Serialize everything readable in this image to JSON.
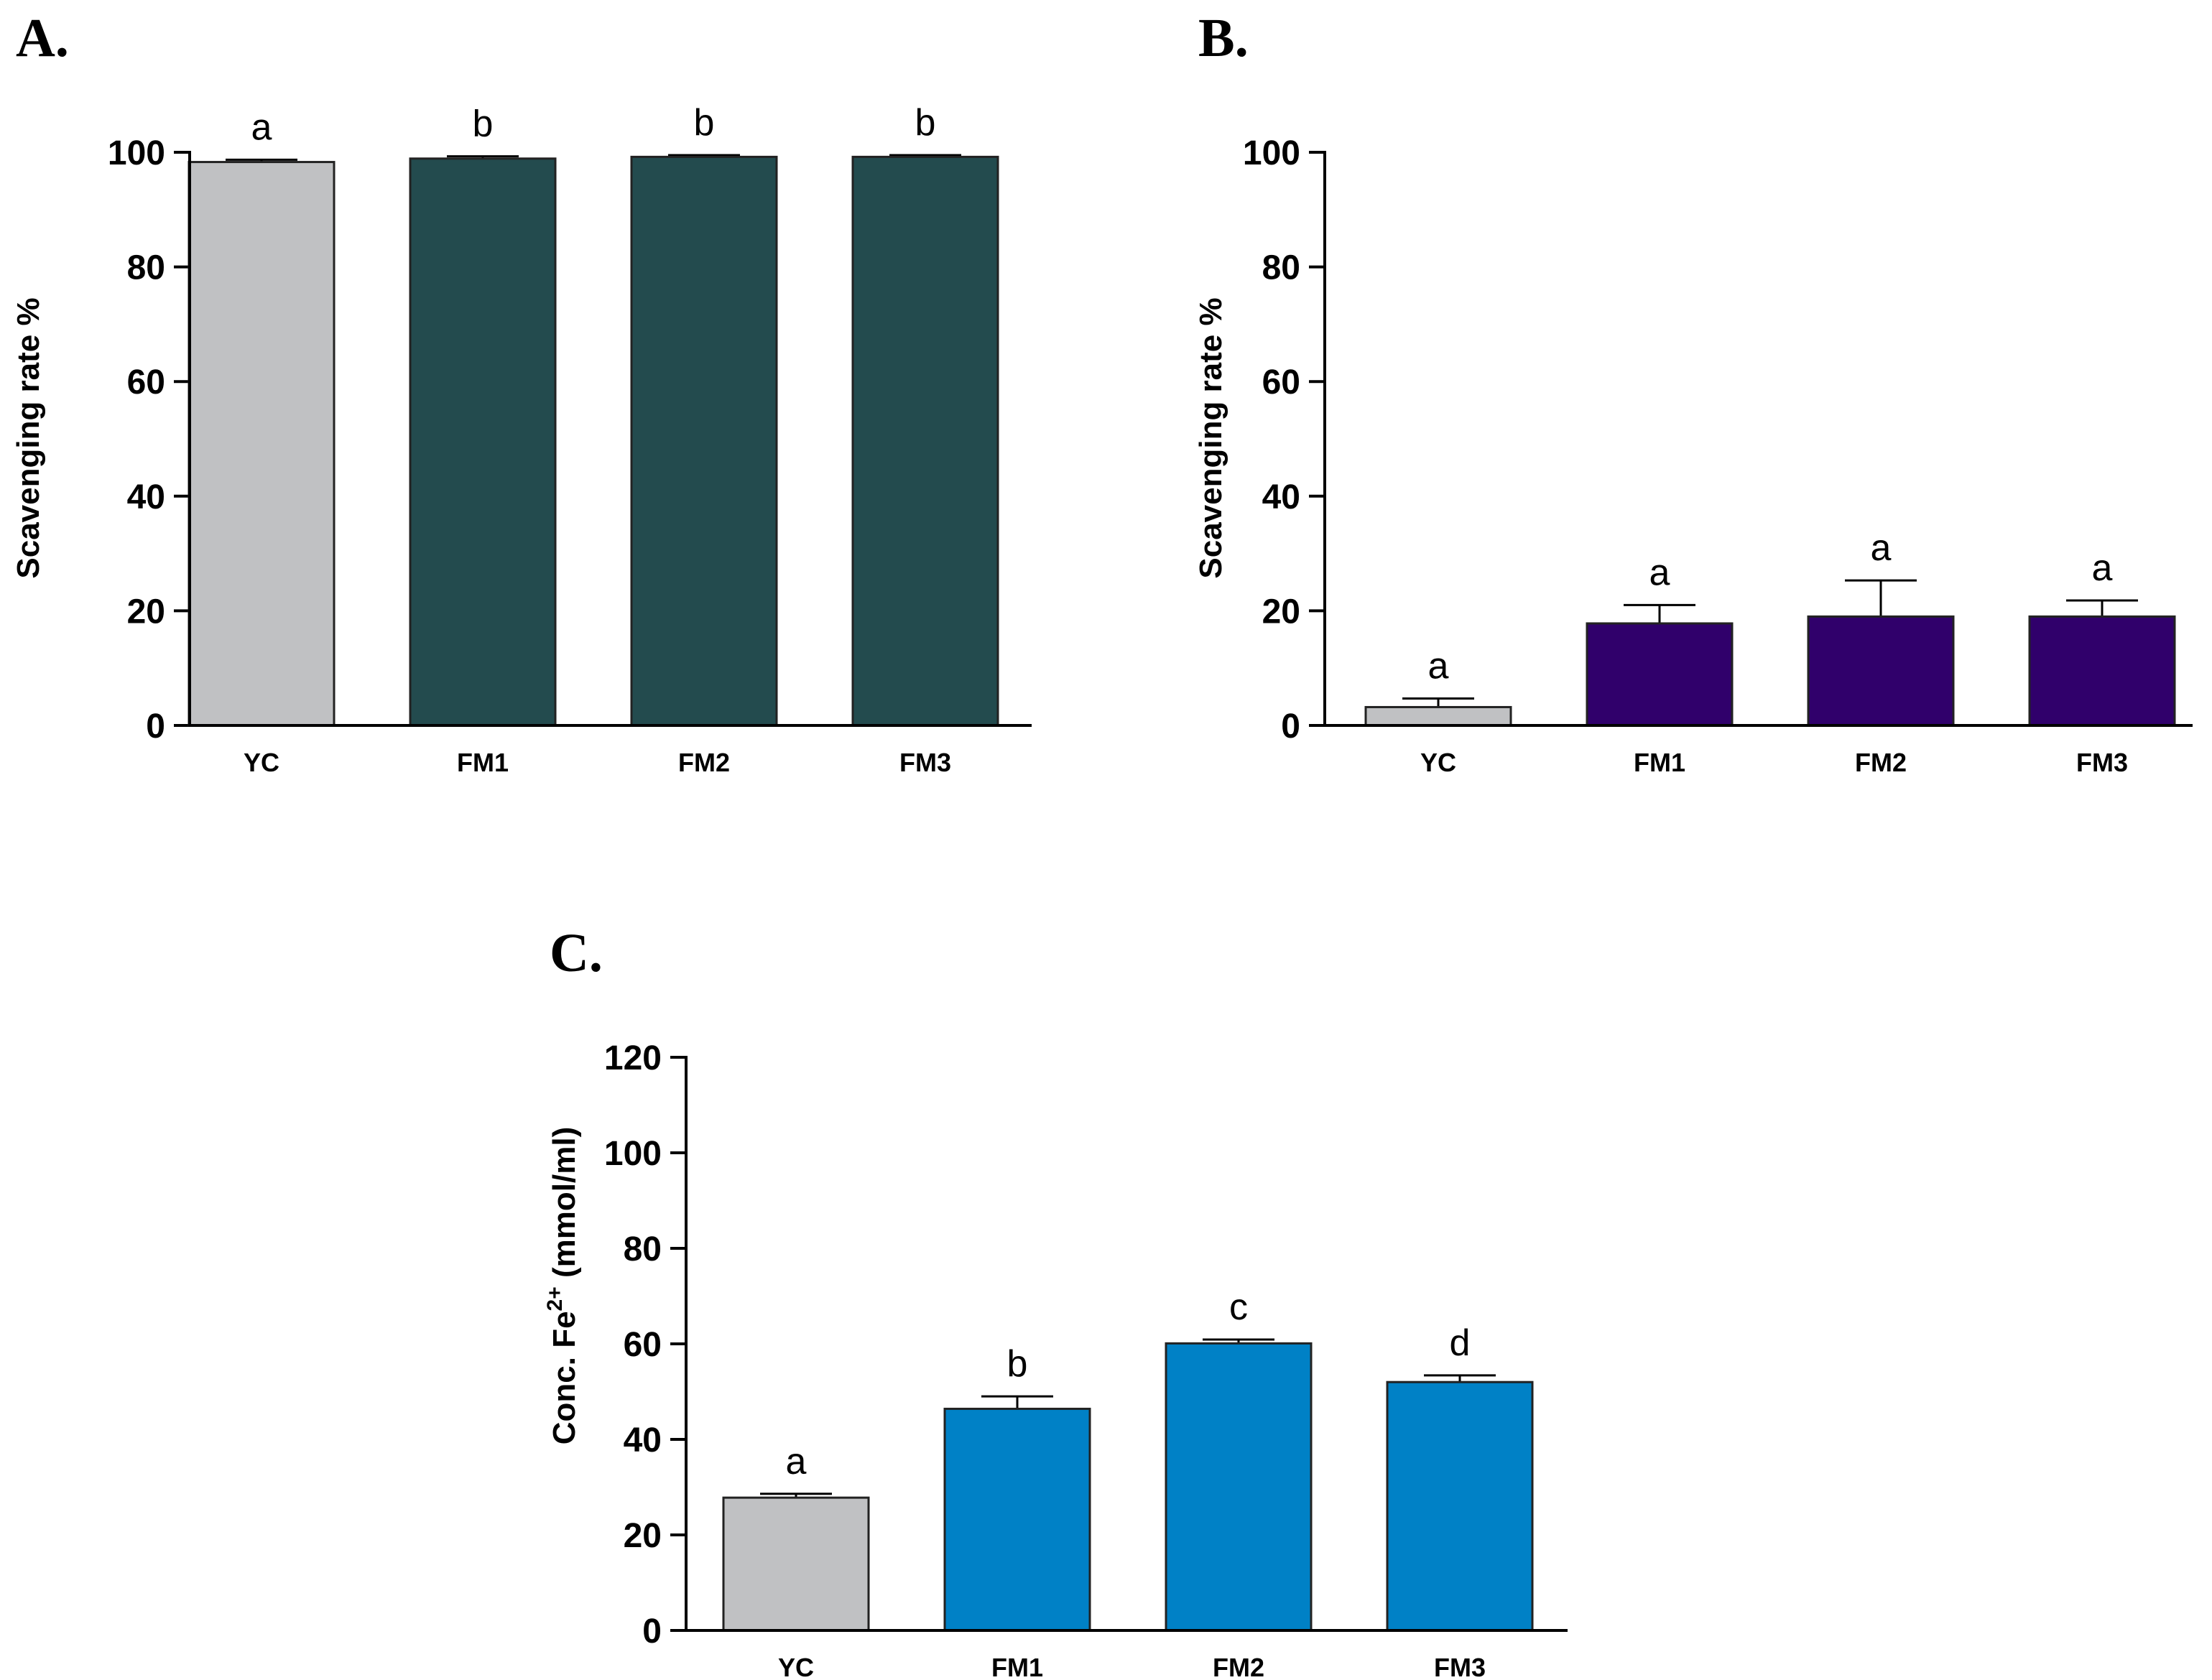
{
  "colors": {
    "control": "#c0c1c3",
    "panel_a": "#234b4e",
    "panel_b": "#30006b",
    "panel_c": "#0081c6",
    "axis": "#000000"
  },
  "chart_data": [
    {
      "type": "bar",
      "panel": "A.",
      "ylabel": "Scavenging rate %",
      "ylim": [
        0,
        100
      ],
      "yticks": [
        0,
        20,
        40,
        60,
        80,
        100
      ],
      "categories": [
        "YC",
        "FM1",
        "FM2",
        "FM3"
      ],
      "values": [
        98.3,
        98.9,
        99.2,
        99.2
      ],
      "errors": [
        0.4,
        0.4,
        0.3,
        0.3
      ],
      "significance": [
        "a",
        "b",
        "b",
        "b"
      ]
    },
    {
      "type": "bar",
      "panel": "B.",
      "ylabel": "Scavenging rate %",
      "ylim": [
        0,
        100
      ],
      "yticks": [
        0,
        20,
        40,
        60,
        80,
        100
      ],
      "categories": [
        "YC",
        "FM1",
        "FM2",
        "FM3"
      ],
      "values": [
        3.2,
        17.8,
        19.0,
        19.0
      ],
      "errors": [
        1.5,
        3.2,
        6.3,
        2.8
      ],
      "significance": [
        "a",
        "a",
        "a",
        "a"
      ]
    },
    {
      "type": "bar",
      "panel": "C.",
      "ylabel_main": "Conc. Fe",
      "ylabel_sup": "2+",
      "ylabel_tail": " (mmol/ml)",
      "ylim": [
        0,
        120
      ],
      "yticks": [
        0,
        20,
        40,
        60,
        80,
        100,
        120
      ],
      "categories": [
        "YC",
        "FM1",
        "FM2",
        "FM3"
      ],
      "values": [
        27.8,
        46.4,
        60.1,
        52.0
      ],
      "errors": [
        0.8,
        2.6,
        0.8,
        1.4
      ],
      "significance": [
        "a",
        "b",
        "c",
        "d"
      ]
    }
  ]
}
